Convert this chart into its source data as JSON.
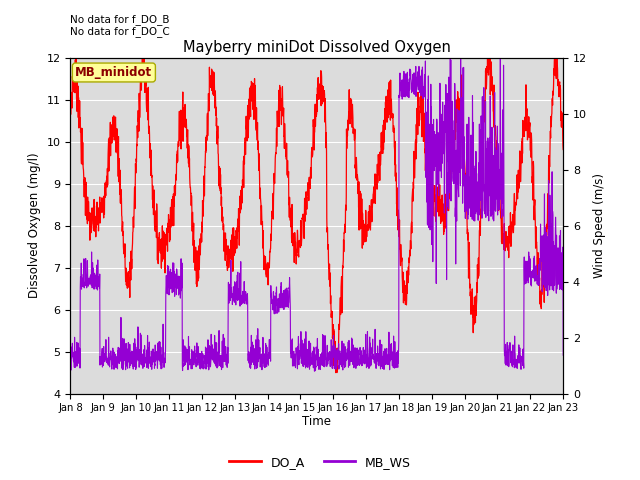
{
  "title": "Mayberry miniDot Dissolved Oxygen",
  "xlabel": "Time",
  "ylabel_left": "Dissolved Oxygen (mg/l)",
  "ylabel_right": "Wind Speed (m/s)",
  "annotation_line1": "No data for f_DO_B",
  "annotation_line2": "No data for f_DO_C",
  "legend_box_label": "MB_minidot",
  "ylim_left": [
    4.0,
    12.0
  ],
  "ylim_right": [
    0,
    12
  ],
  "yticks_left": [
    4.0,
    5.0,
    6.0,
    7.0,
    8.0,
    9.0,
    10.0,
    11.0,
    12.0
  ],
  "yticks_right": [
    0,
    2,
    4,
    6,
    8,
    10,
    12
  ],
  "xtick_labels": [
    "Jan 8",
    "Jan 9",
    "Jan 10",
    "Jan 11",
    "Jan 12",
    "Jan 13",
    "Jan 14",
    "Jan 15",
    "Jan 16",
    "Jan 17",
    "Jan 18",
    "Jan 19",
    "Jan 20",
    "Jan 21",
    "Jan 22",
    "Jan 23"
  ],
  "do_color": "#FF0000",
  "ws_color": "#9400D3",
  "background_color": "#DCDCDC",
  "legend_box_facecolor": "#FFFF99",
  "legend_box_edgecolor": "#AAAA00",
  "figsize": [
    6.4,
    4.8
  ],
  "dpi": 100
}
